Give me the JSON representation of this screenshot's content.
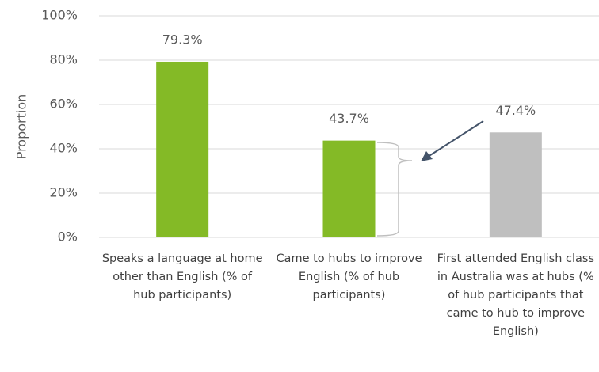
{
  "chart_data": {
    "type": "bar",
    "y_label": "Proportion",
    "categories": [
      "Speaks a language at home other than English (% of hub participants)",
      "Came to hubs to improve English (% of hub participants)",
      "First attended English class in Australia was at hubs (% of hub participants that came to hub to improve English)"
    ],
    "values": [
      79.3,
      43.7,
      47.4
    ],
    "value_labels": [
      "79.3%",
      "43.7%",
      "47.4%"
    ],
    "colors": [
      "#84ba26",
      "#84ba26",
      "#bfbfbf"
    ],
    "ylim": [
      0,
      100
    ],
    "yticks": [
      {
        "value": 0,
        "label": "0%"
      },
      {
        "value": 20,
        "label": "20%"
      },
      {
        "value": 40,
        "label": "40%"
      },
      {
        "value": 60,
        "label": "60%"
      },
      {
        "value": 80,
        "label": "80%"
      },
      {
        "value": 100,
        "label": "100%"
      }
    ],
    "grid": true
  }
}
